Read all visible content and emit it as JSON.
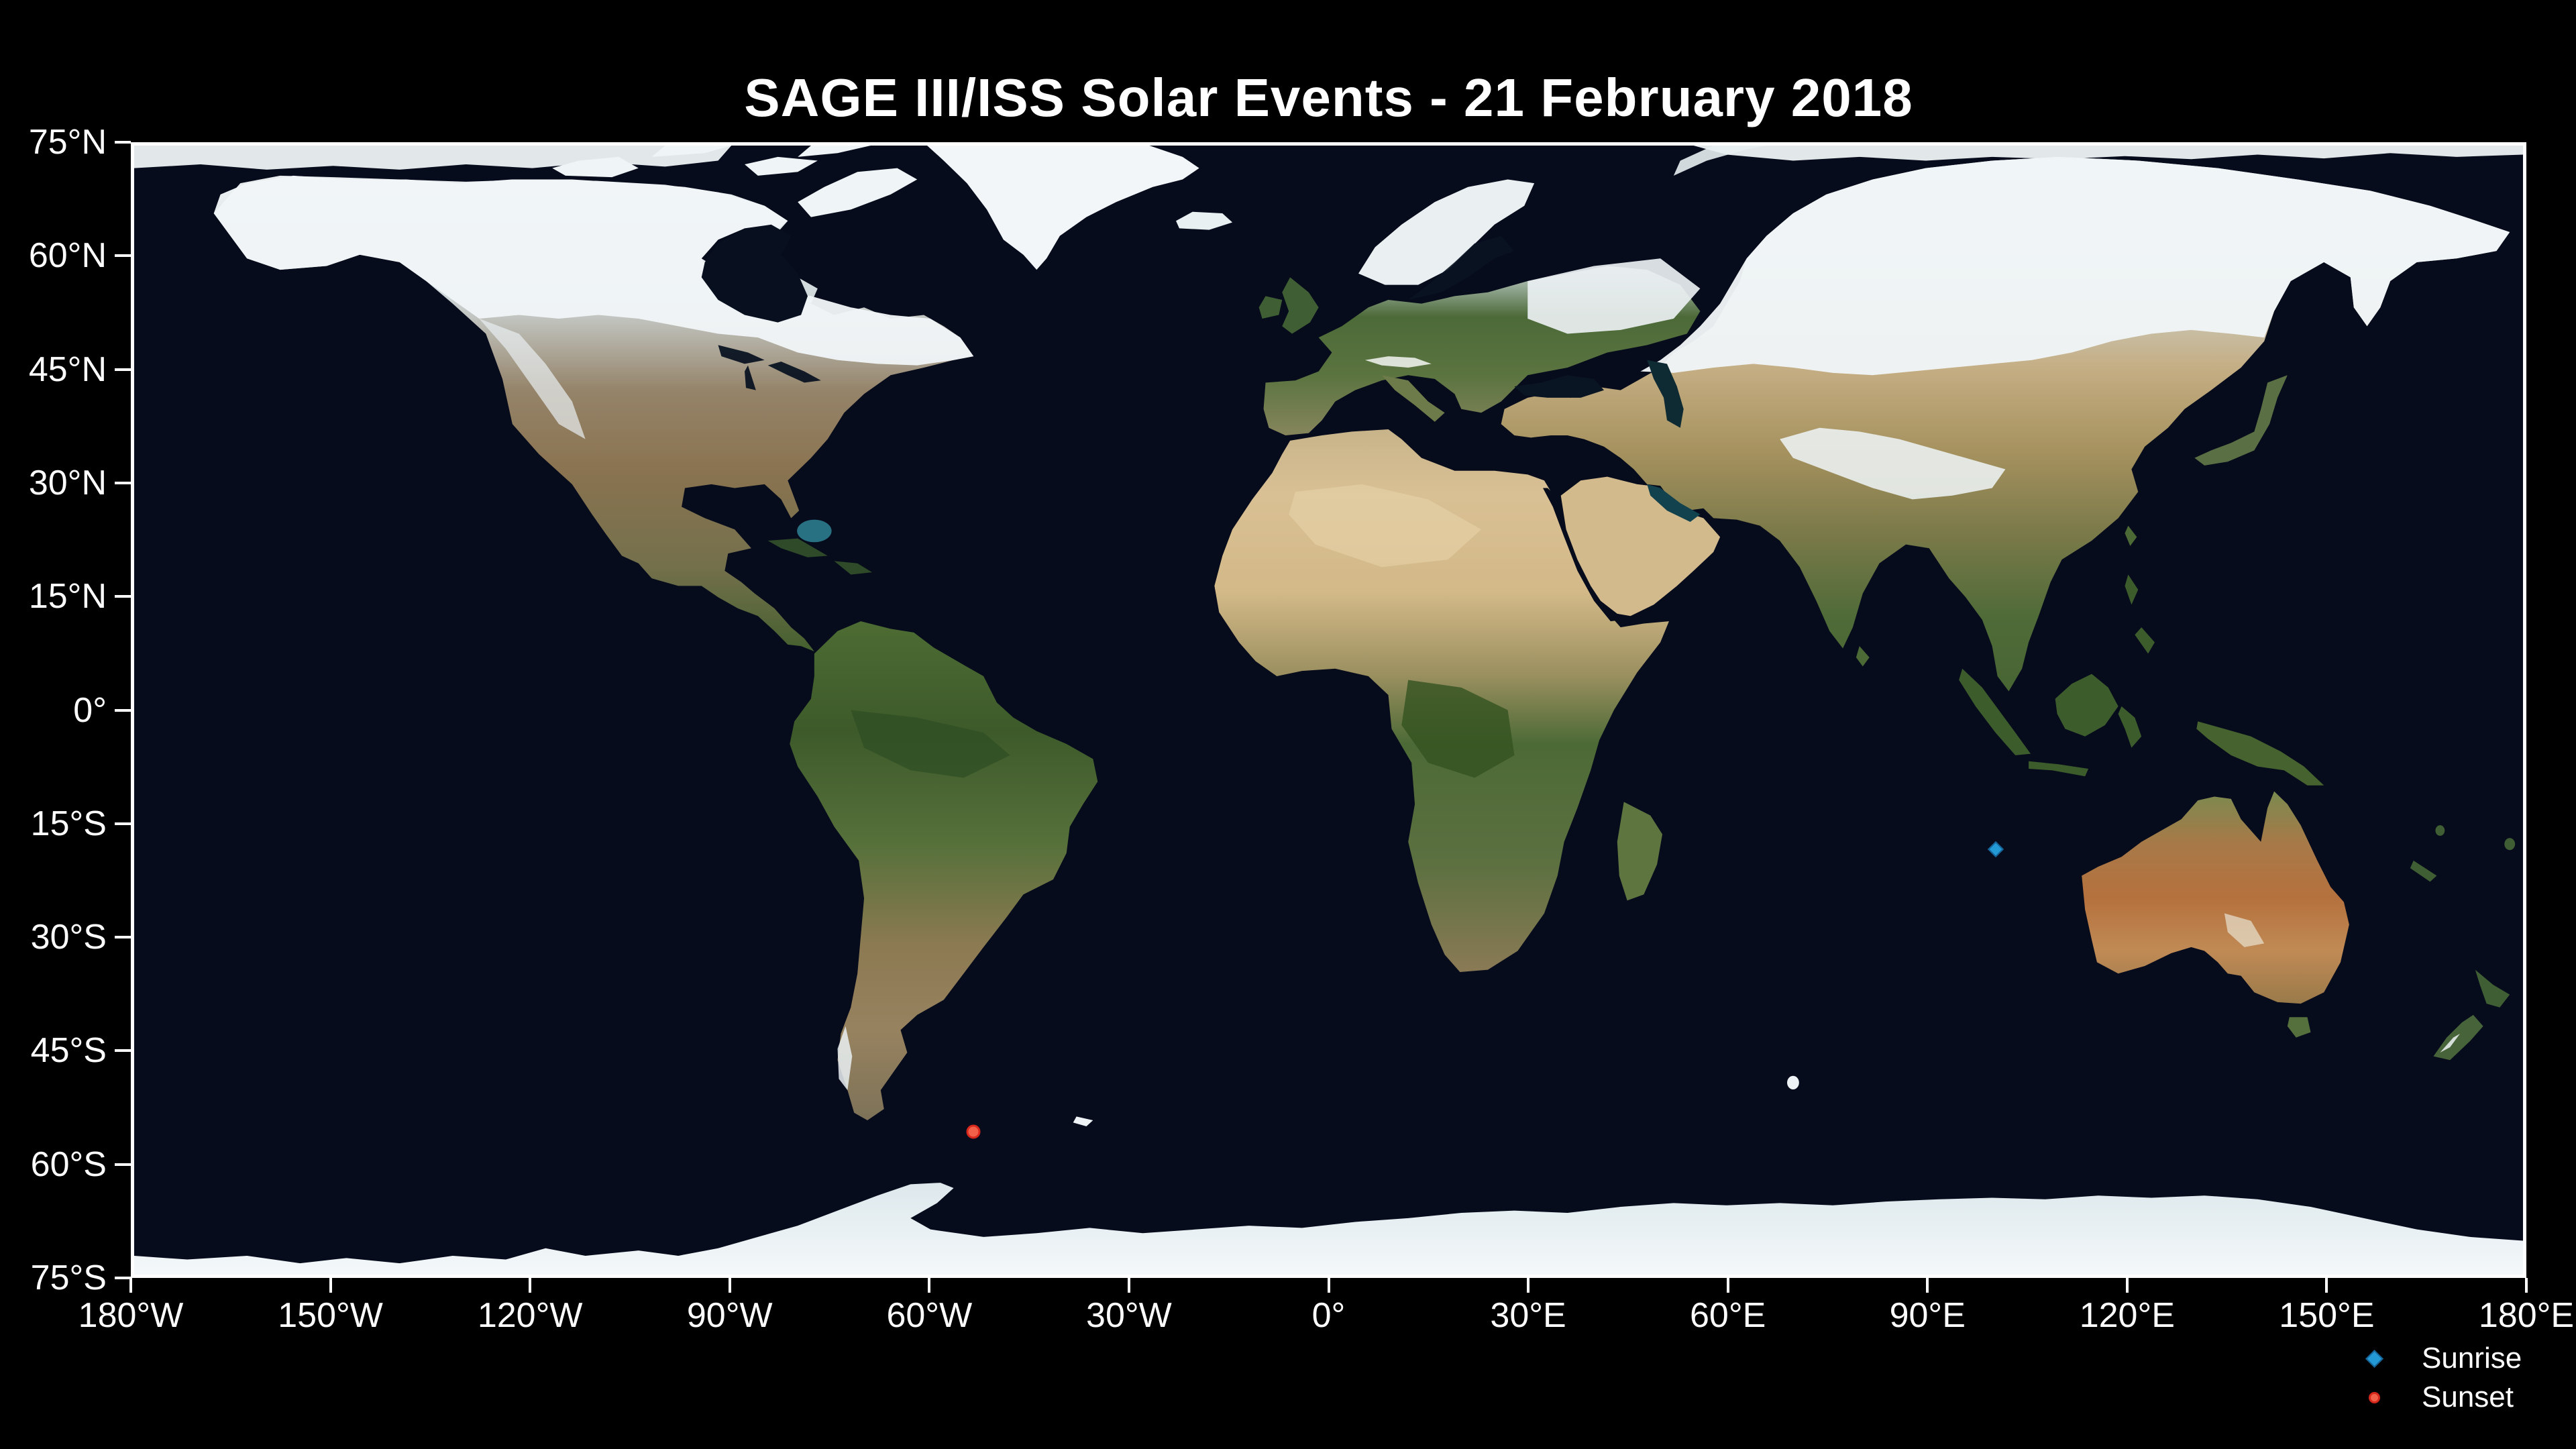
{
  "chart_data": {
    "type": "scatter",
    "title": "SAGE III/ISS Solar Events - 21 February 2018",
    "basemap": "satellite world map, equirectangular (Blue Marble style)",
    "xlabel": "",
    "ylabel": "",
    "xlim": [
      -180,
      180
    ],
    "ylim": [
      -75,
      75
    ],
    "grid": false,
    "legend_position": "below lower-right corner of axes",
    "x_ticks": [
      {
        "value": -180,
        "label": "180°W"
      },
      {
        "value": -150,
        "label": "150°W"
      },
      {
        "value": -120,
        "label": "120°W"
      },
      {
        "value": -90,
        "label": "90°W"
      },
      {
        "value": -60,
        "label": "60°W"
      },
      {
        "value": -30,
        "label": "30°W"
      },
      {
        "value": 0,
        "label": "0°"
      },
      {
        "value": 30,
        "label": "30°E"
      },
      {
        "value": 60,
        "label": "60°E"
      },
      {
        "value": 90,
        "label": "90°E"
      },
      {
        "value": 120,
        "label": "120°E"
      },
      {
        "value": 150,
        "label": "150°E"
      },
      {
        "value": 180,
        "label": "180°E"
      }
    ],
    "y_ticks": [
      {
        "value": 75,
        "label": "75°N"
      },
      {
        "value": 60,
        "label": "60°N"
      },
      {
        "value": 45,
        "label": "45°N"
      },
      {
        "value": 30,
        "label": "30°N"
      },
      {
        "value": 15,
        "label": "15°N"
      },
      {
        "value": 0,
        "label": "0°"
      },
      {
        "value": -15,
        "label": "15°S"
      },
      {
        "value": -30,
        "label": "30°S"
      },
      {
        "value": -45,
        "label": "45°S"
      },
      {
        "value": -60,
        "label": "60°S"
      },
      {
        "value": -75,
        "label": "75°S"
      }
    ],
    "series": [
      {
        "name": "Sunrise",
        "marker": "diamond",
        "color": "#2399d6",
        "edge_color": "#15659a",
        "points": [
          {
            "lon": 100.5,
            "lat": -18.5
          }
        ]
      },
      {
        "name": "Sunset",
        "marker": "circle",
        "color": "#f3604a",
        "edge_color": "#d8281c",
        "points": [
          {
            "lon": -53.5,
            "lat": -56.0
          }
        ]
      }
    ]
  },
  "colors": {
    "background": "#000000",
    "ocean": "#070c1c",
    "frame": "#ffffff",
    "text": "#ffffff"
  }
}
